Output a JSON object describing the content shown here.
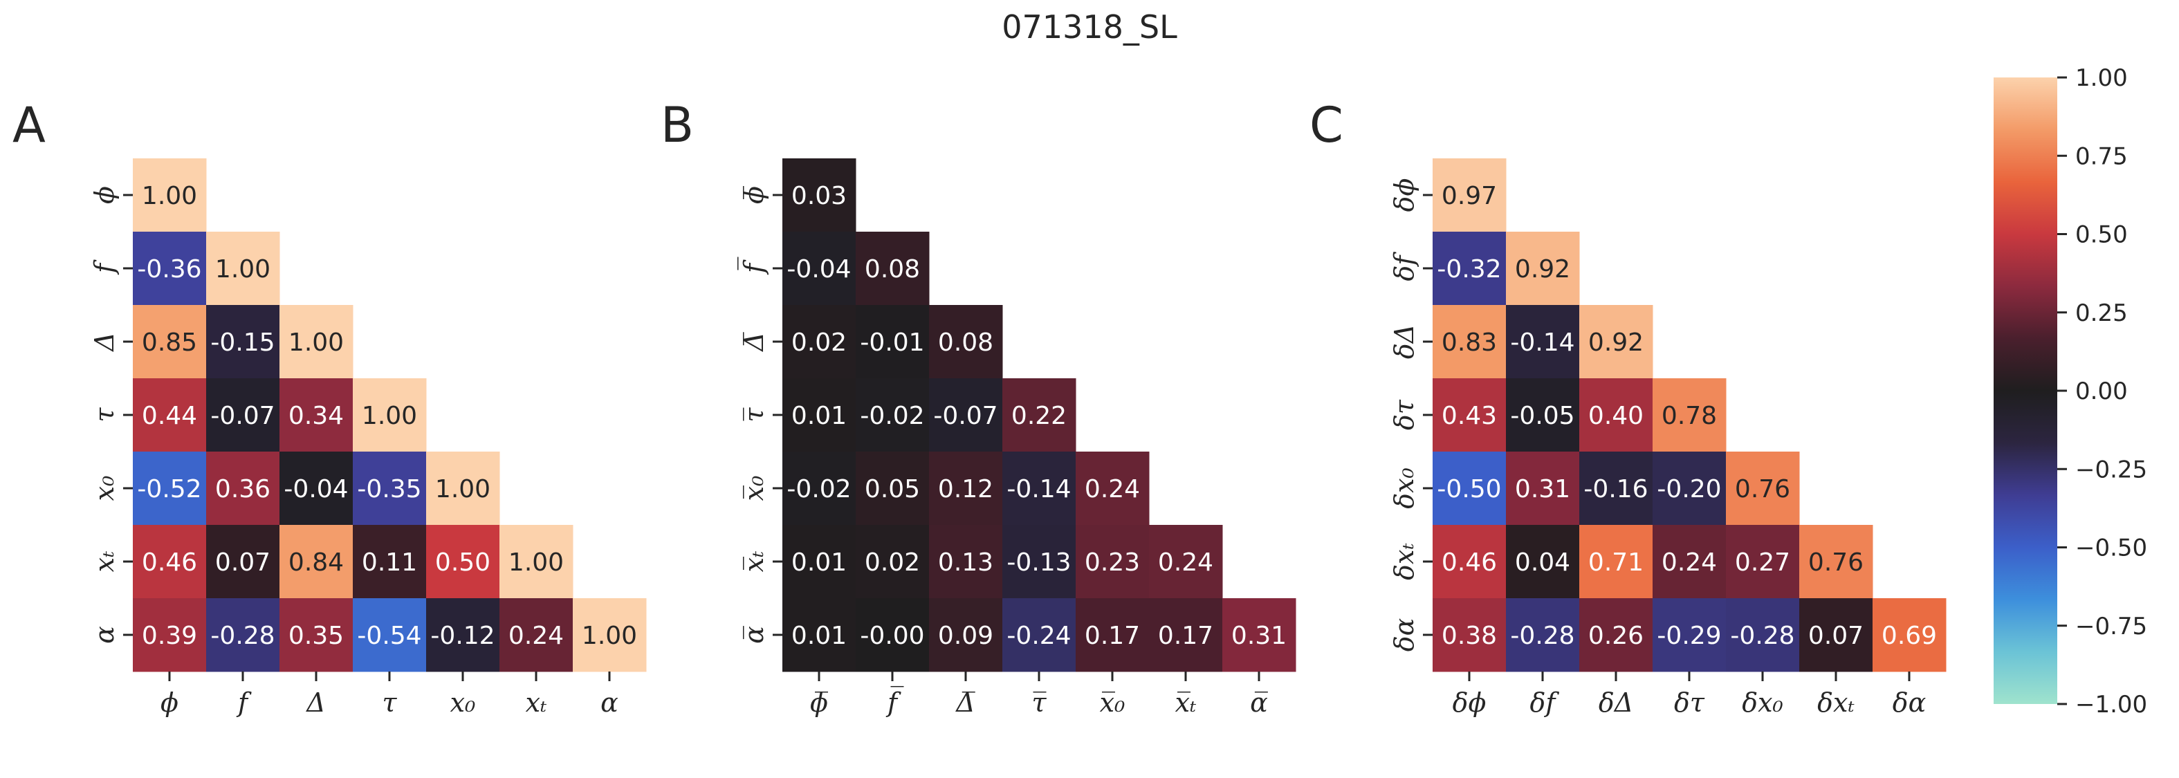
{
  "suptitle": "071318_SL",
  "colors": {
    "text_light": "#ffffff",
    "text_dark": "#262626",
    "tick": "#262626",
    "colormap": [
      "#9fe3cd",
      "#6bc3d6",
      "#3d8fdc",
      "#3c5fc9",
      "#3f3d93",
      "#2c2540",
      "#1f1e1f",
      "#4a1f2d",
      "#8c2a3e",
      "#c9393f",
      "#e9643c",
      "#f39b68",
      "#fcd2ac"
    ]
  },
  "colorbar": {
    "vmin": -1.0,
    "vmax": 1.0,
    "ticks": [
      "1.00",
      "0.75",
      "0.50",
      "0.25",
      "0.00",
      "−0.25",
      "−0.50",
      "−0.75",
      "−1.00"
    ],
    "tick_values": [
      1.0,
      0.75,
      0.5,
      0.25,
      0.0,
      -0.25,
      -0.5,
      -0.75,
      -1.0
    ]
  },
  "chart_data": [
    {
      "type": "heatmap",
      "panel_label": "A",
      "labels": [
        "ϕ",
        "f",
        "Δ",
        "τ",
        "x₀",
        "xₜ",
        "α"
      ],
      "matrix": [
        [
          1.0
        ],
        [
          -0.36,
          1.0
        ],
        [
          0.85,
          -0.15,
          1.0
        ],
        [
          0.44,
          -0.07,
          0.34,
          1.0
        ],
        [
          -0.52,
          0.36,
          -0.04,
          -0.35,
          1.0
        ],
        [
          0.46,
          0.07,
          0.84,
          0.11,
          0.5,
          1.0
        ],
        [
          0.39,
          -0.28,
          0.35,
          -0.54,
          -0.12,
          0.24,
          1.0
        ]
      ],
      "value_labels": [
        [
          "1.00"
        ],
        [
          "-0.36",
          "1.00"
        ],
        [
          "0.85",
          "-0.15",
          "1.00"
        ],
        [
          "0.44",
          "-0.07",
          "0.34",
          "1.00"
        ],
        [
          "-0.52",
          "0.36",
          "-0.04",
          "-0.35",
          "1.00"
        ],
        [
          "0.46",
          "0.07",
          "0.84",
          "0.11",
          "0.50",
          "1.00"
        ],
        [
          "0.39",
          "-0.28",
          "0.35",
          "-0.54",
          "-0.12",
          "0.24",
          "1.00"
        ]
      ]
    },
    {
      "type": "heatmap",
      "panel_label": "B",
      "labels": [
        "ϕ̅",
        "f̅",
        "Δ̅",
        "τ̅",
        "x̅₀",
        "x̅ₜ",
        "α̅"
      ],
      "matrix": [
        [
          0.03
        ],
        [
          -0.04,
          0.08
        ],
        [
          0.02,
          -0.01,
          0.08
        ],
        [
          0.01,
          -0.02,
          -0.07,
          0.22
        ],
        [
          -0.02,
          0.05,
          0.12,
          -0.14,
          0.24
        ],
        [
          0.01,
          0.02,
          0.13,
          -0.13,
          0.23,
          0.24
        ],
        [
          0.01,
          -0.0,
          0.09,
          -0.24,
          0.17,
          0.17,
          0.31
        ]
      ],
      "value_labels": [
        [
          "0.03"
        ],
        [
          "-0.04",
          "0.08"
        ],
        [
          "0.02",
          "-0.01",
          "0.08"
        ],
        [
          "0.01",
          "-0.02",
          "-0.07",
          "0.22"
        ],
        [
          "-0.02",
          "0.05",
          "0.12",
          "-0.14",
          "0.24"
        ],
        [
          "0.01",
          "0.02",
          "0.13",
          "-0.13",
          "0.23",
          "0.24"
        ],
        [
          "0.01",
          "-0.00",
          "0.09",
          "-0.24",
          "0.17",
          "0.17",
          "0.31"
        ]
      ]
    },
    {
      "type": "heatmap",
      "panel_label": "C",
      "labels": [
        "δϕ",
        "δf",
        "δΔ",
        "δτ",
        "δx₀",
        "δxₜ",
        "δα"
      ],
      "matrix": [
        [
          0.97
        ],
        [
          -0.32,
          0.92
        ],
        [
          0.83,
          -0.14,
          0.92
        ],
        [
          0.43,
          -0.05,
          0.4,
          0.78
        ],
        [
          -0.5,
          0.31,
          -0.16,
          -0.2,
          0.76
        ],
        [
          0.46,
          0.04,
          0.71,
          0.24,
          0.27,
          0.76
        ],
        [
          0.38,
          -0.28,
          0.26,
          -0.29,
          -0.28,
          0.07,
          0.69
        ]
      ],
      "value_labels": [
        [
          "0.97"
        ],
        [
          "-0.32",
          "0.92"
        ],
        [
          "0.83",
          "-0.14",
          "0.92"
        ],
        [
          "0.43",
          "-0.05",
          "0.40",
          "0.78"
        ],
        [
          "-0.50",
          "0.31",
          "-0.16",
          "-0.20",
          "0.76"
        ],
        [
          "0.46",
          "0.04",
          "0.71",
          "0.24",
          "0.27",
          "0.76"
        ],
        [
          "0.38",
          "-0.28",
          "0.26",
          "-0.29",
          "-0.28",
          "0.07",
          "0.69"
        ]
      ]
    }
  ]
}
